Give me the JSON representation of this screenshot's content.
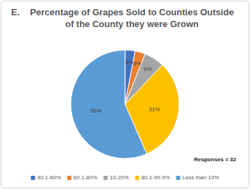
{
  "chart_data": {
    "type": "pie",
    "title": "Percentage of Grapes Sold to Counties Outside of the County they were Grown",
    "annotations": [
      "E.",
      "Responses = 32"
    ],
    "categories": [
      "40.1-60%",
      "60.1-80%",
      "10-20%",
      "80.1-99.9%",
      "Less than 10%"
    ],
    "values": [
      3,
      3,
      6,
      31,
      56
    ],
    "value_labels": [
      "3%",
      "3%",
      "6%",
      "31%",
      "56%"
    ],
    "colors": [
      "#4472c4",
      "#ed7d31",
      "#a5a5a5",
      "#ffc000",
      "#5b9bd5"
    ],
    "data_labels": true,
    "legend": "bottom"
  }
}
